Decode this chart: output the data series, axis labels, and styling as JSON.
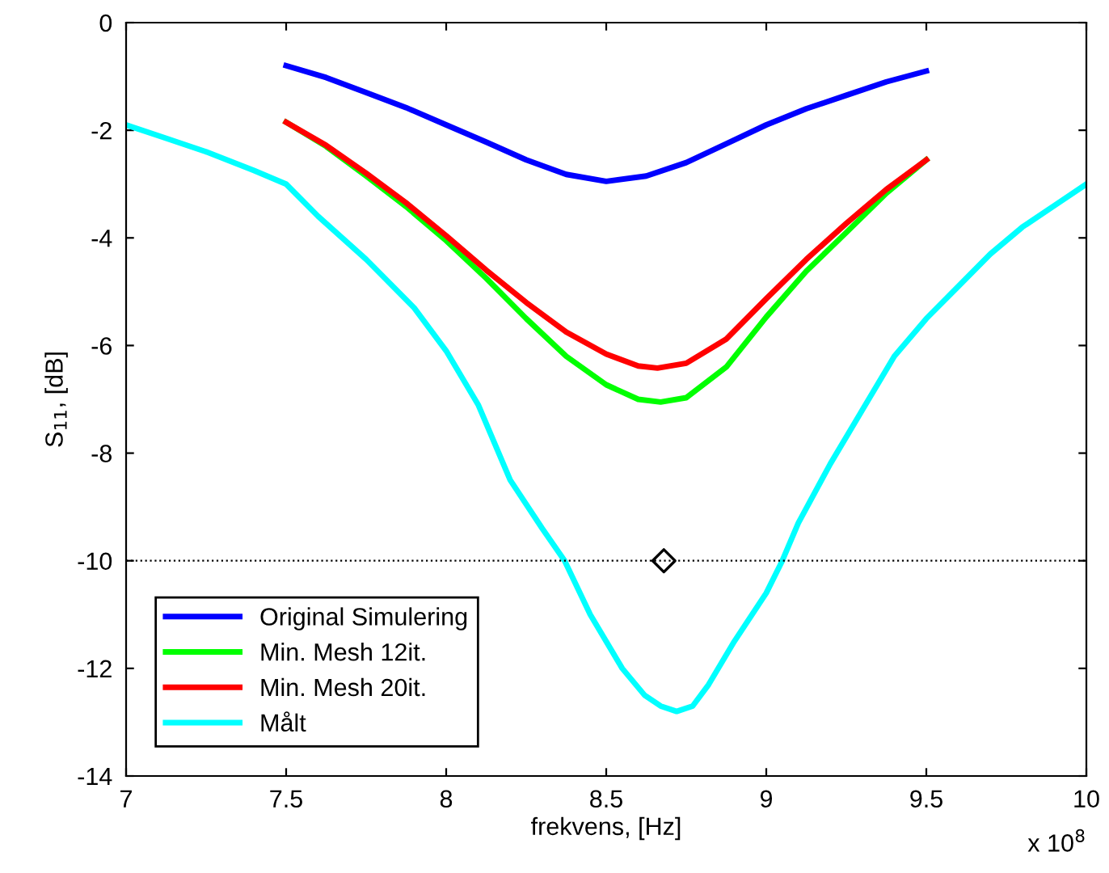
{
  "chart_data": {
    "type": "line",
    "xlabel": "frekvens, [Hz]",
    "ylabel": "S$_{11}$, [dB]",
    "xlim": [
      7,
      10
    ],
    "xticks": [
      7,
      7.5,
      8,
      8.5,
      9,
      9.5,
      10
    ],
    "ylim": [
      -14,
      0
    ],
    "yticks": [
      -14,
      -12,
      -10,
      -8,
      -6,
      -4,
      -2,
      0
    ],
    "grid": false,
    "legend": "bottom left",
    "line_style": "solid",
    "marker": "none",
    "annotations": [
      "x 10$^{8}$"
    ],
    "ref_lines": [
      {
        "axis": "y",
        "value": -10,
        "color": "#000000",
        "line_style": "dotted"
      }
    ],
    "series": [
      {
        "name": "Original Simulering",
        "color": "#0000ff",
        "x": [
          7.5,
          7.625,
          7.75,
          7.875,
          8.0,
          8.125,
          8.25,
          8.375,
          8.5,
          8.625,
          8.75,
          8.875,
          9.0,
          9.125,
          9.25,
          9.375,
          9.5
        ],
        "values": [
          -0.8,
          -1.02,
          -1.3,
          -1.58,
          -1.9,
          -2.22,
          -2.55,
          -2.82,
          -2.95,
          -2.85,
          -2.6,
          -2.25,
          -1.9,
          -1.6,
          -1.35,
          -1.1,
          -0.9
        ]
      },
      {
        "name": "Min. Mesh 12it.",
        "color": "#00ff00",
        "x": [
          7.5,
          7.625,
          7.75,
          7.875,
          8.0,
          8.125,
          8.25,
          8.375,
          8.5,
          8.6,
          8.67,
          8.75,
          8.875,
          9.0,
          9.125,
          9.25,
          9.375,
          9.5
        ],
        "values": [
          -1.85,
          -2.3,
          -2.85,
          -3.42,
          -4.05,
          -4.75,
          -5.5,
          -6.2,
          -6.73,
          -7.0,
          -7.05,
          -6.97,
          -6.4,
          -5.47,
          -4.62,
          -3.9,
          -3.17,
          -2.55
        ]
      },
      {
        "name": "Min. Mesh 20it.",
        "color": "#ff0000",
        "x": [
          7.5,
          7.625,
          7.75,
          7.875,
          8.0,
          8.125,
          8.25,
          8.375,
          8.5,
          8.6,
          8.66,
          8.75,
          8.875,
          9.0,
          9.125,
          9.25,
          9.375,
          9.5
        ],
        "values": [
          -1.85,
          -2.28,
          -2.8,
          -3.35,
          -3.96,
          -4.6,
          -5.2,
          -5.75,
          -6.16,
          -6.38,
          -6.42,
          -6.33,
          -5.88,
          -5.13,
          -4.4,
          -3.73,
          -3.1,
          -2.55
        ]
      },
      {
        "name": "Målt",
        "color": "#00ffff",
        "x": [
          7.0,
          7.1,
          7.25,
          7.4,
          7.5,
          7.6,
          7.75,
          7.9,
          8.0,
          8.1,
          8.2,
          8.3,
          8.37,
          8.45,
          8.55,
          8.62,
          8.67,
          8.72,
          8.77,
          8.82,
          8.9,
          9.0,
          9.05,
          9.1,
          9.2,
          9.3,
          9.4,
          9.5,
          9.6,
          9.7,
          9.8,
          9.9,
          10.0
        ],
        "values": [
          -1.9,
          -2.1,
          -2.4,
          -2.75,
          -3.0,
          -3.6,
          -4.4,
          -5.3,
          -6.1,
          -7.1,
          -8.5,
          -9.4,
          -10.0,
          -11.0,
          -12.0,
          -12.5,
          -12.7,
          -12.8,
          -12.7,
          -12.3,
          -11.5,
          -10.6,
          -10.0,
          -9.3,
          -8.2,
          -7.2,
          -6.2,
          -5.5,
          -4.9,
          -4.3,
          -3.8,
          -3.4,
          -3.0
        ]
      },
      {
        "type": "scatter",
        "color": "#000000",
        "marker": "diamond",
        "x": [
          8.68
        ],
        "values": [
          -10
        ]
      }
    ]
  }
}
